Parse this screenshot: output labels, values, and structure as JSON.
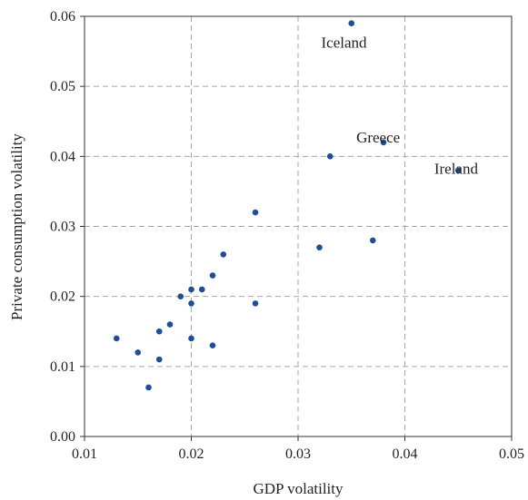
{
  "chart_data": {
    "type": "scatter",
    "xlabel": "GDP volatility",
    "ylabel": "Private consumption volatility",
    "xlim": [
      0.01,
      0.05
    ],
    "ylim": [
      0.0,
      0.06
    ],
    "x_ticks": [
      0.01,
      0.02,
      0.03,
      0.04,
      0.05
    ],
    "y_ticks": [
      0.0,
      0.01,
      0.02,
      0.03,
      0.04,
      0.05,
      0.06
    ],
    "x_tick_labels": [
      "0.01",
      "0.02",
      "0.03",
      "0.04",
      "0.05"
    ],
    "y_tick_labels": [
      "0.00",
      "0.01",
      "0.02",
      "0.03",
      "0.04",
      "0.05",
      "0.06"
    ],
    "grid": true,
    "marker_color": "#1f4e96",
    "points": [
      {
        "x": 0.013,
        "y": 0.014
      },
      {
        "x": 0.015,
        "y": 0.012
      },
      {
        "x": 0.016,
        "y": 0.007
      },
      {
        "x": 0.017,
        "y": 0.015
      },
      {
        "x": 0.017,
        "y": 0.011
      },
      {
        "x": 0.018,
        "y": 0.016
      },
      {
        "x": 0.019,
        "y": 0.02
      },
      {
        "x": 0.02,
        "y": 0.021
      },
      {
        "x": 0.02,
        "y": 0.019
      },
      {
        "x": 0.02,
        "y": 0.014
      },
      {
        "x": 0.021,
        "y": 0.021
      },
      {
        "x": 0.022,
        "y": 0.023
      },
      {
        "x": 0.022,
        "y": 0.013
      },
      {
        "x": 0.023,
        "y": 0.026
      },
      {
        "x": 0.026,
        "y": 0.032
      },
      {
        "x": 0.026,
        "y": 0.019
      },
      {
        "x": 0.032,
        "y": 0.027
      },
      {
        "x": 0.033,
        "y": 0.04
      },
      {
        "x": 0.035,
        "y": 0.059
      },
      {
        "x": 0.037,
        "y": 0.028
      },
      {
        "x": 0.038,
        "y": 0.042
      },
      {
        "x": 0.045,
        "y": 0.038
      }
    ],
    "annotations": [
      {
        "text": "Iceland",
        "x": 0.0343,
        "y": 0.0555
      },
      {
        "text": "Greece",
        "x": 0.0375,
        "y": 0.042
      },
      {
        "text": "Ireland",
        "x": 0.0448,
        "y": 0.0375
      }
    ]
  }
}
